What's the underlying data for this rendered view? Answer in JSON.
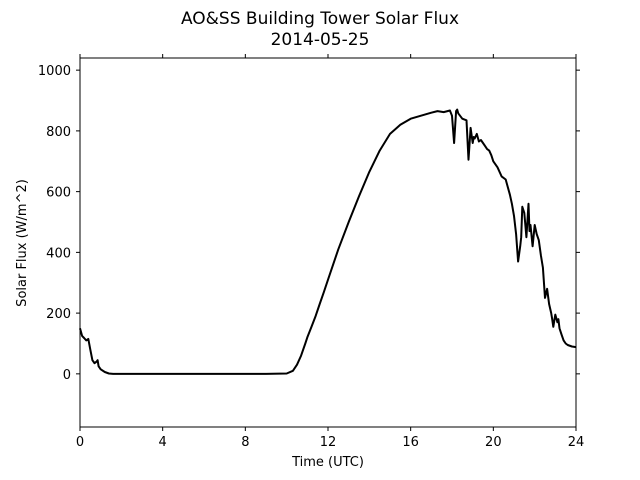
{
  "chart_data": {
    "type": "line",
    "title": "AO&SS Building Tower Solar Flux",
    "subtitle": "2014-05-25",
    "xlabel": "Time (UTC)",
    "ylabel": "Solar Flux (W/m^2)",
    "xlim": [
      0,
      24
    ],
    "ylim": [
      -175,
      1040
    ],
    "xticks": [
      0,
      4,
      8,
      12,
      16,
      20,
      24
    ],
    "yticks": [
      0,
      200,
      400,
      600,
      800,
      1000
    ],
    "grid": false,
    "line_color": "#000000",
    "series": [
      {
        "x": [
          0.0,
          0.1,
          0.2,
          0.3,
          0.4,
          0.5,
          0.6,
          0.7,
          0.8,
          0.85,
          0.9,
          1.0,
          1.2,
          1.4,
          1.6,
          1.8,
          2.0,
          3.0,
          4.0,
          5.0,
          6.0,
          7.0,
          8.0,
          9.0,
          10.0,
          10.3,
          10.5,
          10.7,
          10.9,
          11.0,
          11.2,
          11.4,
          11.6,
          11.8,
          12.0,
          12.5,
          13.0,
          13.5,
          14.0,
          14.5,
          15.0,
          15.5,
          16.0,
          16.5,
          17.0,
          17.3,
          17.6,
          17.9,
          18.0,
          18.1,
          18.2,
          18.25,
          18.3,
          18.5,
          18.7,
          18.8,
          18.9,
          19.0,
          19.05,
          19.1,
          19.2,
          19.3,
          19.4,
          19.5,
          19.6,
          19.7,
          19.8,
          19.9,
          20.0,
          20.2,
          20.4,
          20.6,
          20.8,
          20.9,
          21.0,
          21.1,
          21.2,
          21.3,
          21.35,
          21.4,
          21.5,
          21.6,
          21.7,
          21.75,
          21.8,
          21.9,
          22.0,
          22.1,
          22.2,
          22.3,
          22.4,
          22.5,
          22.6,
          22.7,
          22.8,
          22.85,
          22.9,
          23.0,
          23.1,
          23.15,
          23.2,
          23.3,
          23.4,
          23.5,
          23.6,
          23.8,
          24.0
        ],
        "y": [
          150,
          125,
          118,
          110,
          115,
          80,
          45,
          35,
          40,
          45,
          25,
          15,
          6,
          1,
          0,
          0,
          0,
          0,
          0,
          0,
          0,
          0,
          0,
          0,
          1,
          10,
          30,
          60,
          100,
          120,
          155,
          190,
          230,
          270,
          310,
          410,
          500,
          585,
          665,
          735,
          790,
          820,
          840,
          850,
          860,
          865,
          862,
          867,
          850,
          760,
          865,
          870,
          858,
          840,
          835,
          705,
          810,
          760,
          780,
          775,
          790,
          765,
          770,
          760,
          750,
          740,
          735,
          720,
          700,
          680,
          650,
          640,
          590,
          560,
          520,
          460,
          370,
          420,
          450,
          550,
          530,
          450,
          560,
          470,
          490,
          420,
          490,
          460,
          440,
          390,
          350,
          250,
          280,
          230,
          200,
          180,
          155,
          195,
          170,
          180,
          150,
          130,
          110,
          100,
          95,
          90,
          88
        ]
      }
    ]
  }
}
